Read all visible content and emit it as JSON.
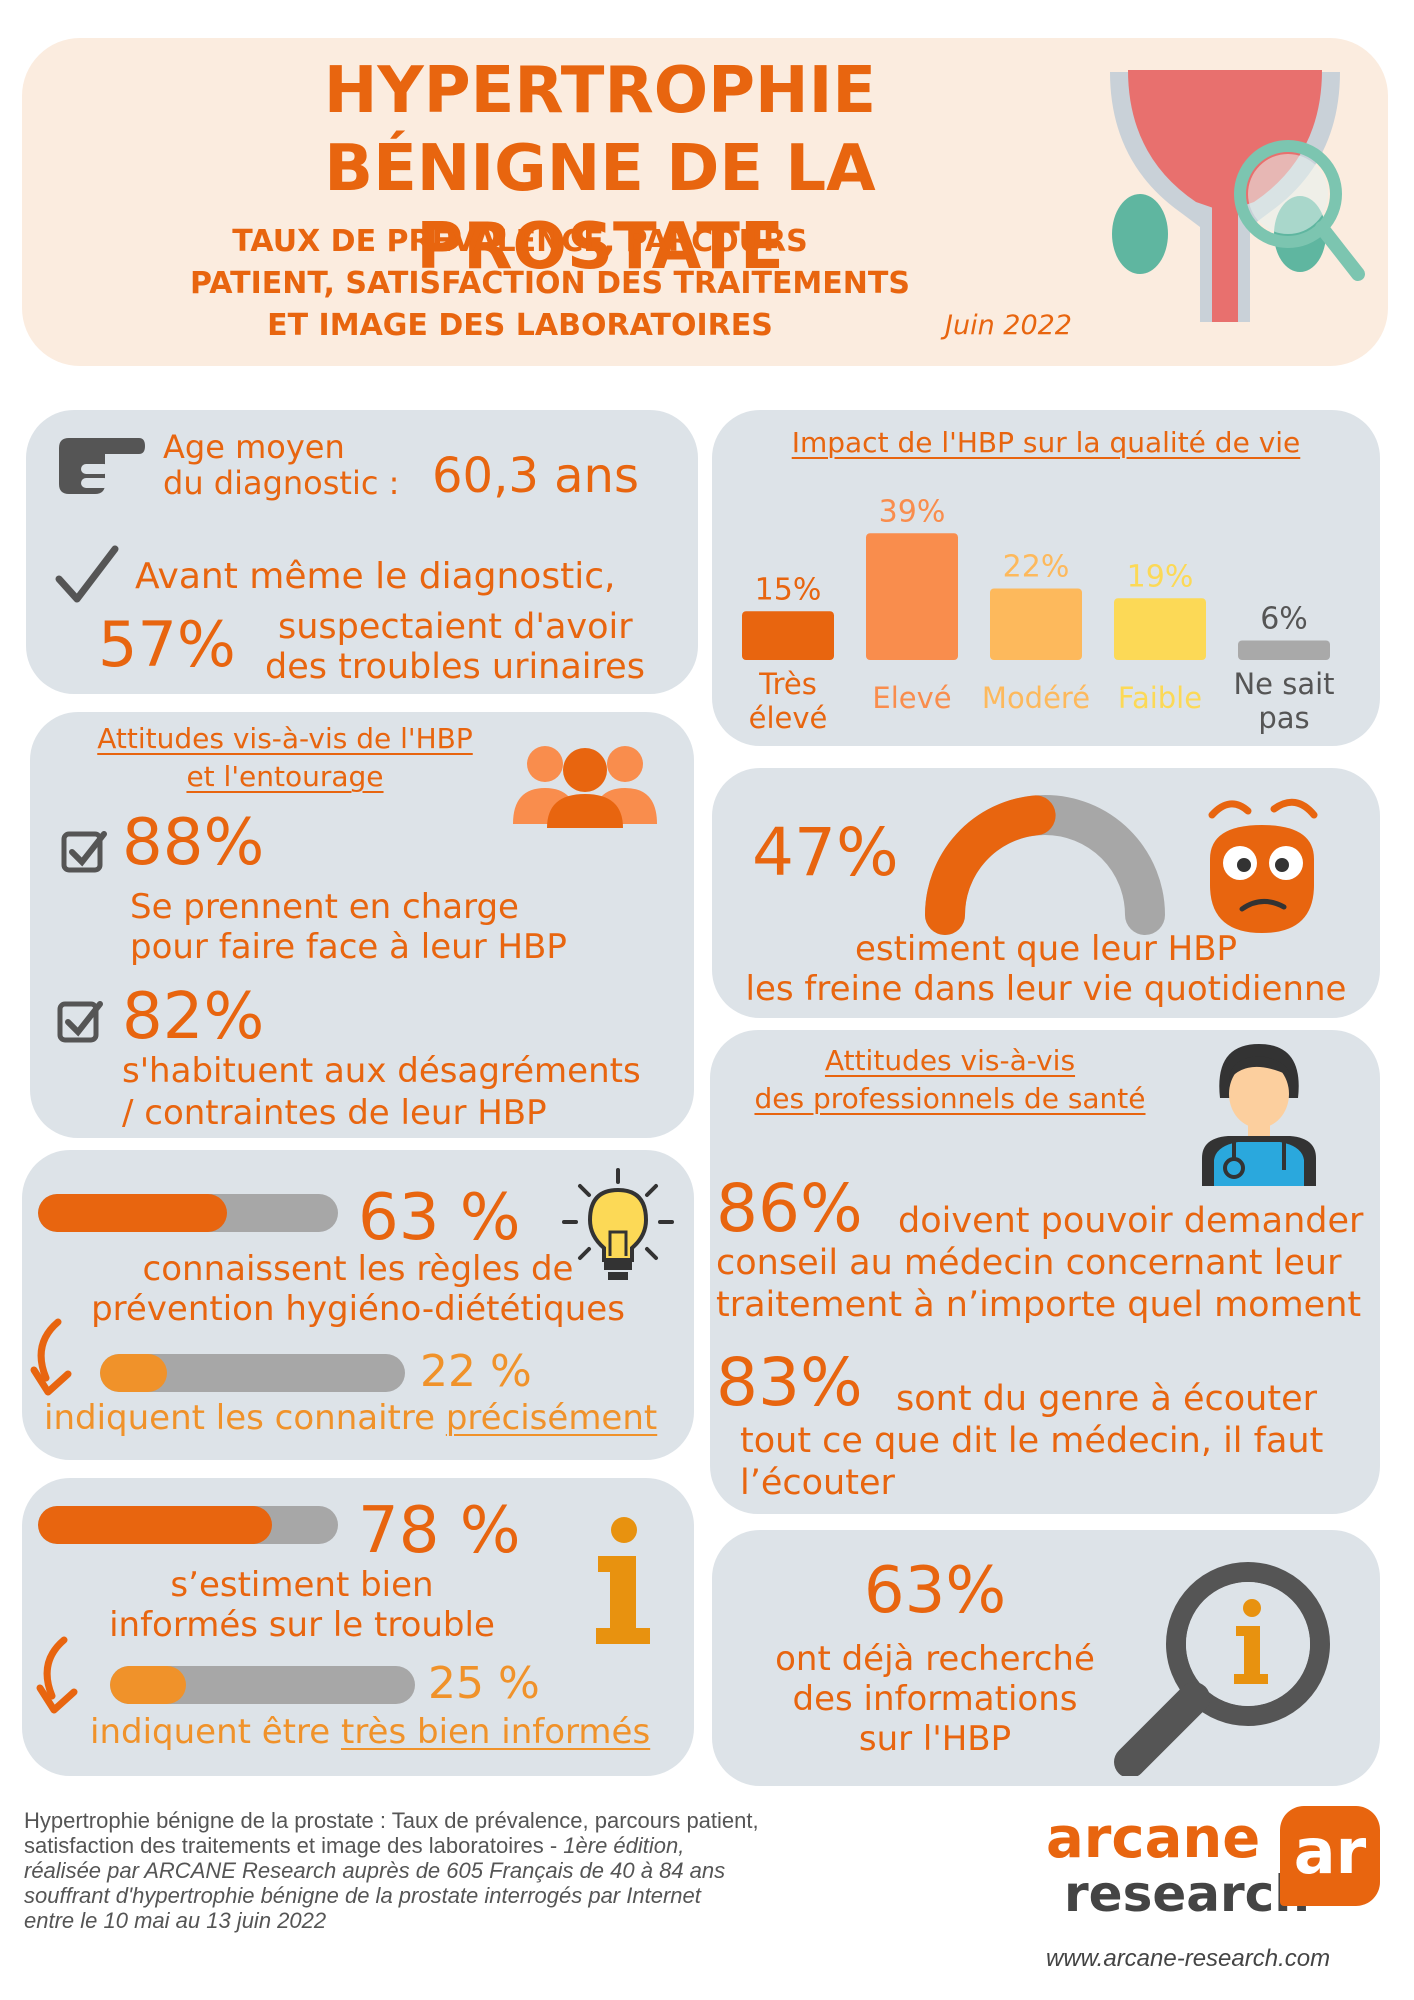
{
  "header": {
    "title_line1": "HYPERTROPHIE",
    "title_line2": "BÉNIGNE DE LA PROSTATE",
    "subtitle_line1": "TAUX DE PRÉVALENCE, PARCOURS",
    "subtitle_line2": "PATIENT, SATISFACTION DES TRAITEMENTS",
    "subtitle_line3": "ET IMAGE DES LABORATOIRES",
    "date": "Juin 2022"
  },
  "age_card": {
    "label_line1": "Age moyen",
    "label_line2": "du diagnostic :",
    "value": "60,3 ans",
    "suspect_line1": "Avant même le diagnostic,",
    "suspect_percent": "57%",
    "suspect_line2": "suspectaient d'avoir",
    "suspect_line3": "des troubles urinaires"
  },
  "impact_card": {
    "title": "Impact de l'HBP sur la qualité de vie",
    "chart_data": {
      "type": "bar",
      "title": "Impact de l'HBP sur la qualité de vie",
      "categories": [
        "Très élevé",
        "Elevé",
        "Modéré",
        "Faible",
        "Ne sait pas"
      ],
      "values": [
        15,
        39,
        22,
        19,
        6
      ],
      "value_labels": [
        "15%",
        "39%",
        "22%",
        "19%",
        "6%"
      ],
      "category_labels": [
        [
          "Très",
          "élevé"
        ],
        [
          "Elevé"
        ],
        [
          "Modéré"
        ],
        [
          "Faible"
        ],
        [
          "Ne sait",
          "pas"
        ]
      ],
      "colors": [
        "#e8650f",
        "#f98d4d",
        "#fdb95c",
        "#fcd956",
        "#a9a9a9"
      ],
      "label_colors": [
        "#e8650f",
        "#f98d4d",
        "#fdb95c",
        "#fcd956",
        "#555555"
      ],
      "ylim": [
        0,
        40
      ]
    }
  },
  "attitudes_card": {
    "title_line1": "Attitudes vis-à-vis de l'HBP",
    "title_line2": "et l'entourage",
    "item1_percent": "88%",
    "item1_line1": "Se prennent en charge",
    "item1_line2": "pour faire face à leur HBP",
    "item2_percent": "82%",
    "item2_line1": "s'habituent aux désagréments",
    "item2_line2": "/ contraintes de leur HBP"
  },
  "gauge_card": {
    "percent": "47%",
    "gauge_value": 0.47,
    "line1": "estiment que leur HBP",
    "line2": "les freine dans leur vie quotidienne"
  },
  "prevention_card": {
    "main_percent": "63 %",
    "main_value": 0.63,
    "main_line1": "connaissent les règles de",
    "main_line2": "prévention hygiéno-diététiques",
    "sub_percent": "22 %",
    "sub_value": 0.22,
    "sub_text": "indiquent les connaitre",
    "sub_emph": "précisément"
  },
  "pros_card": {
    "title_line1": "Attitudes vis-à-vis",
    "title_line2": "des professionnels de santé",
    "item1_percent": "86%",
    "item1_line1": "doivent pouvoir demander",
    "item1_line2": "conseil au médecin concernant leur",
    "item1_line3": "traitement à n’importe quel moment",
    "item2_percent": "83%",
    "item2_line1": "sont du genre à écouter",
    "item2_line2": "tout ce que dit le médecin, il faut",
    "item2_line3": "l’écouter"
  },
  "info_card": {
    "main_percent": "78 %",
    "main_value": 0.78,
    "main_line1": "s’estiment bien",
    "main_line2": "informés sur le trouble",
    "sub_percent": "25 %",
    "sub_value": 0.25,
    "sub_text": "indiquent être",
    "sub_emph": "très bien informés"
  },
  "search_card": {
    "percent": "63%",
    "line1": "ont déjà recherché",
    "line2": "des informations",
    "line3": "sur l'HBP"
  },
  "footer": {
    "line1": "Hypertrophie bénigne de la prostate : Taux de prévalence, parcours patient,",
    "line2_plain": "satisfaction des traitements et image des laboratoires - ",
    "line2_italic": "1ère édition,",
    "line3": "réalisée par ARCANE Research auprès de 605 Français de 40 à 84 ans",
    "line4": "souffrant d'hypertrophie bénigne de la prostate interrogés par Internet",
    "line5": "entre le 10 mai au 13 juin 2022",
    "logo_text1": "arcane",
    "logo_text2": "research",
    "logo_mark": "ar",
    "url": "www.arcane-research.com"
  },
  "colors": {
    "orange": "#e8650f",
    "light_orange": "#f0922a",
    "card_bg": "#dde3e8",
    "header_bg": "#fbecdf",
    "gray_bar": "#a7a7a7"
  }
}
